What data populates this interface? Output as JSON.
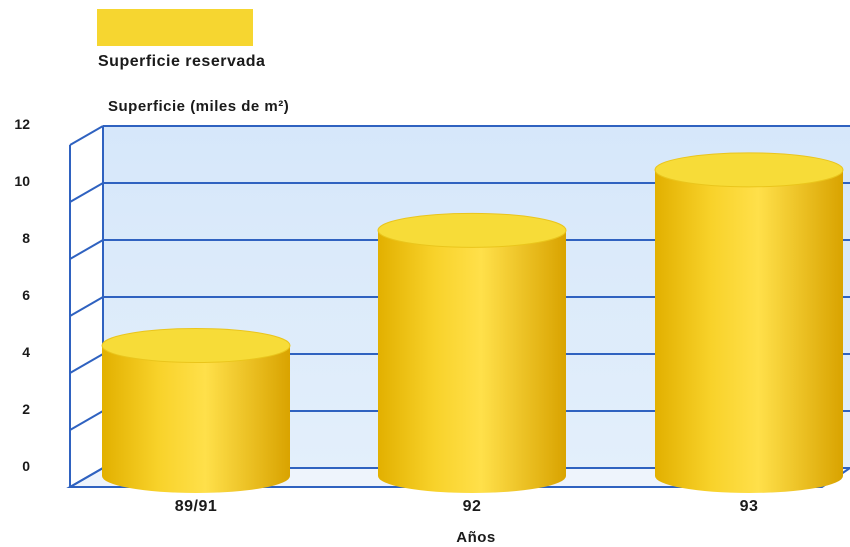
{
  "chart_data": {
    "type": "bar",
    "style": "3d-cylinder",
    "categories": [
      "89/91",
      "92",
      "93"
    ],
    "series": [
      {
        "name": "Superficie reservada",
        "values": [
          4.6,
          8.6,
          10.7
        ]
      }
    ],
    "ylabel": "Superficie (miles de m²)",
    "xlabel": "Años",
    "ylim": [
      0,
      12
    ],
    "yticks": [
      "0",
      "2",
      "4",
      "6",
      "8",
      "10",
      "12"
    ],
    "grid": true,
    "legend_position": "top-left",
    "colors": {
      "bar": "#f2c81e",
      "bar_top": "#f7dd3a",
      "background": "#dbeaf9",
      "grid": "#2f62c0"
    }
  }
}
